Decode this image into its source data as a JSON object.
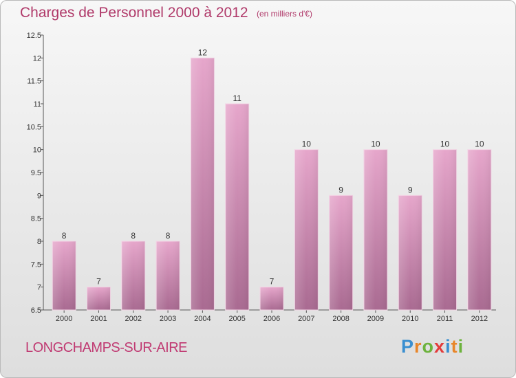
{
  "title": "Charges de Personnel 2000 à 2012",
  "subtitle": "(en milliers d'€)",
  "commune": "LONGCHAMPS-SUR-AIRE",
  "brand": {
    "letters": [
      "P",
      "r",
      "o",
      "x",
      "i",
      "t",
      "i"
    ],
    "colors": [
      "#3a8fd0",
      "#e8862a",
      "#6cb23c",
      "#e33b3b",
      "#3a8fd0",
      "#e8862a",
      "#6cb23c"
    ]
  },
  "chart_data": {
    "type": "bar",
    "title": "Charges de Personnel 2000 à 2012",
    "subtitle": "(en milliers d'€)",
    "categories": [
      "2000",
      "2001",
      "2002",
      "2003",
      "2004",
      "2005",
      "2006",
      "2007",
      "2008",
      "2009",
      "2010",
      "2011",
      "2012"
    ],
    "values": [
      8,
      7,
      8,
      8,
      12,
      11,
      7,
      10,
      9,
      10,
      9,
      10,
      10
    ],
    "ylim": [
      6.5,
      12.5
    ],
    "yticks": [
      "6.5",
      "7",
      "7.5",
      "8",
      "8.5",
      "9",
      "9.5",
      "10",
      "10.5",
      "11",
      "11.5",
      "12",
      "12.5"
    ],
    "grid": false,
    "legend": "none",
    "bar_color": "#d88ab4"
  }
}
